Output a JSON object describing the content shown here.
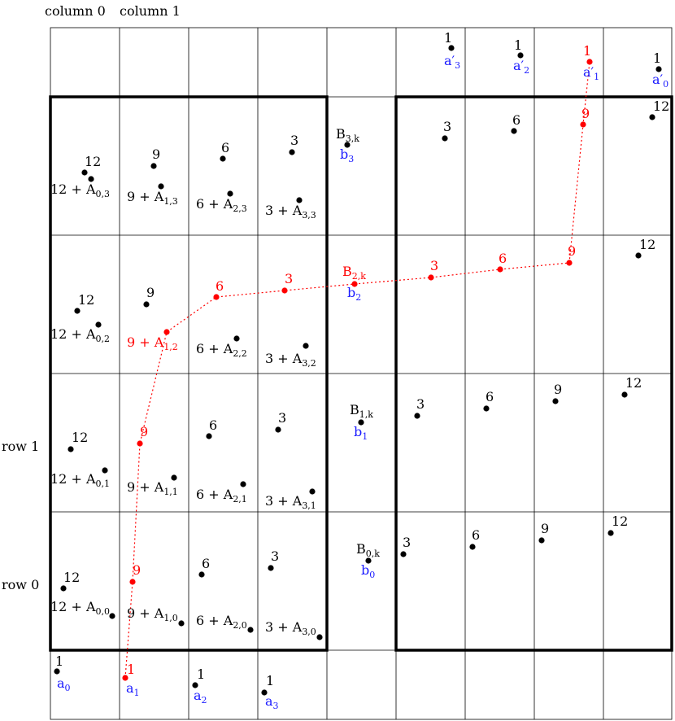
{
  "header": {
    "col0": "column 0",
    "col1": "column 1"
  },
  "row_labels": {
    "row1": "row 1",
    "row0": "row 0"
  },
  "bottom": [
    {
      "num": "1",
      "name": "a",
      "sub": "0"
    },
    {
      "num": "1",
      "name": "a",
      "sub": "1"
    },
    {
      "num": "1",
      "name": "a",
      "sub": "2"
    },
    {
      "num": "1",
      "name": "a",
      "sub": "3"
    }
  ],
  "top": [
    {
      "num": "1",
      "name": "a′",
      "sub": "3"
    },
    {
      "num": "1",
      "name": "a′",
      "sub": "2"
    },
    {
      "num": "1",
      "name": "a′",
      "sub": "1"
    },
    {
      "num": "1",
      "name": "a′",
      "sub": "0"
    }
  ],
  "left_cells": [
    {
      "num": "12",
      "expr": "12 + A",
      "sub": "0,3"
    },
    {
      "num": "9",
      "expr": "9 + A",
      "sub": "1,3"
    },
    {
      "num": "6",
      "expr": "6 + A",
      "sub": "2,3"
    },
    {
      "num": "3",
      "expr": "3 + A",
      "sub": "3,3"
    },
    {
      "num": "12",
      "expr": "12 + A",
      "sub": "0,2"
    },
    {
      "num": "9",
      "expr": "9 + A",
      "sub": "1,2"
    },
    {
      "num": "6",
      "expr": "6 + A",
      "sub": "2,2"
    },
    {
      "num": "3",
      "expr": "3 + A",
      "sub": "3,2"
    },
    {
      "num": "12",
      "expr": "12 + A",
      "sub": "0,1"
    },
    {
      "num": "9",
      "expr": "9 + A",
      "sub": "1,1"
    },
    {
      "num": "6",
      "expr": "6 + A",
      "sub": "2,1"
    },
    {
      "num": "3",
      "expr": "3 + A",
      "sub": "3,1"
    },
    {
      "num": "12",
      "expr": "12 + A",
      "sub": "0,0"
    },
    {
      "num": "9",
      "expr": "9 + A",
      "sub": "1,0"
    },
    {
      "num": "6",
      "expr": "6 + A",
      "sub": "2,0"
    },
    {
      "num": "3",
      "expr": "3 + A",
      "sub": "3,0"
    }
  ],
  "b_cells": [
    {
      "B": "B",
      "Bsub": "3,k",
      "b": "b",
      "bsub": "3"
    },
    {
      "B": "B",
      "Bsub": "2,k",
      "b": "b",
      "bsub": "2"
    },
    {
      "B": "B",
      "Bsub": "1,k",
      "b": "b",
      "bsub": "1"
    },
    {
      "B": "B",
      "Bsub": "0,k",
      "b": "b",
      "bsub": "0"
    }
  ],
  "right_nums": [
    "3",
    "6",
    "9",
    "12"
  ],
  "colors": {
    "path": "#ff0000",
    "label": "#1a1aff",
    "ink": "#000000"
  }
}
